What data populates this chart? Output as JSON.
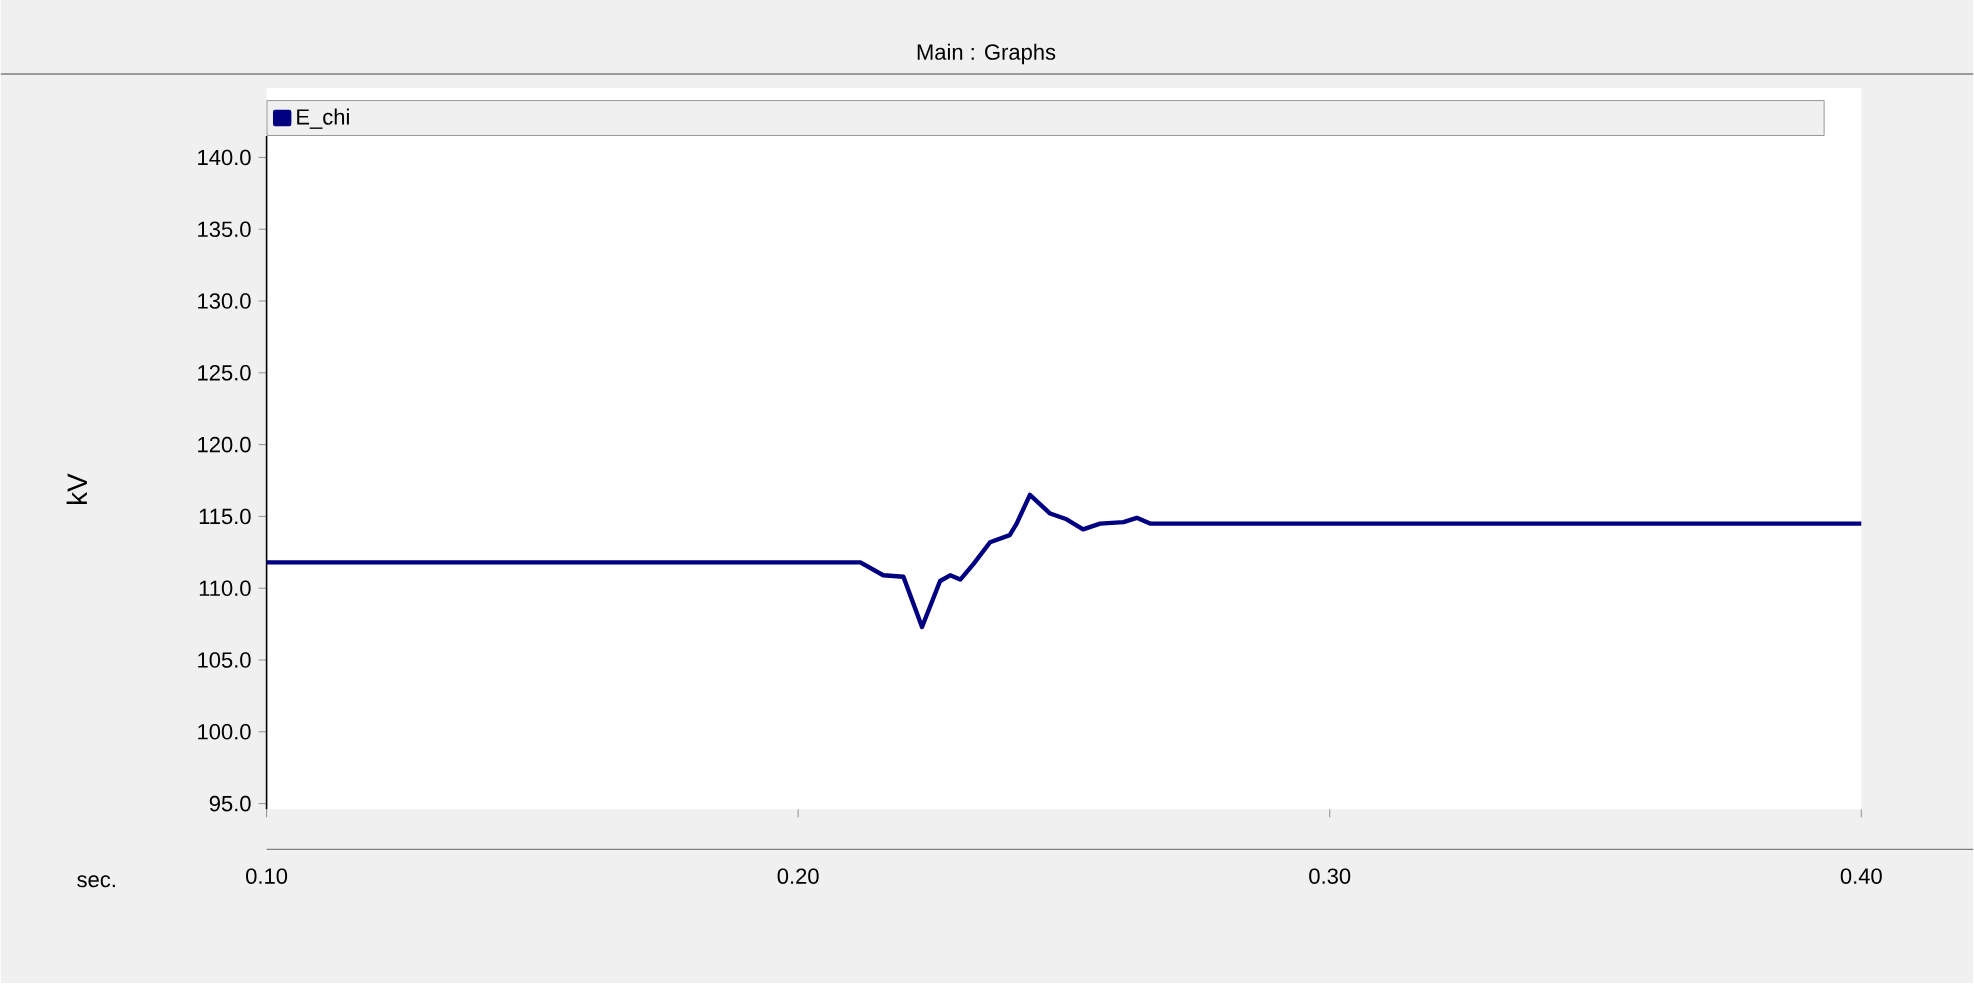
{
  "chart_data": {
    "type": "line",
    "title": "Main : Graphs",
    "xlabel": "sec.",
    "ylabel": "kV",
    "xlim": [
      0.1,
      0.4
    ],
    "ylim": [
      94.6,
      141.5
    ],
    "xticks": [
      {
        "value": 0.1,
        "label": "0.10"
      },
      {
        "value": 0.2,
        "label": "0.20"
      },
      {
        "value": 0.3,
        "label": "0.30"
      },
      {
        "value": 0.4,
        "label": "0.40"
      }
    ],
    "yticks": [
      {
        "value": 95,
        "label": "95.0"
      },
      {
        "value": 100,
        "label": "100.0"
      },
      {
        "value": 105,
        "label": "105.0"
      },
      {
        "value": 110,
        "label": "110.0"
      },
      {
        "value": 115,
        "label": "115.0"
      },
      {
        "value": 120,
        "label": "120.0"
      },
      {
        "value": 125,
        "label": "125.0"
      },
      {
        "value": 130,
        "label": "130.0"
      },
      {
        "value": 135,
        "label": "135.0"
      },
      {
        "value": 140,
        "label": "140.0"
      }
    ],
    "grid": false,
    "legend": "top left",
    "marker": "none",
    "line_style": "solid",
    "series": [
      {
        "name": "E_chi",
        "color": "#000080",
        "x": [
          0.1,
          0.2117,
          0.216,
          0.2198,
          0.2233,
          0.2267,
          0.2286,
          0.2305,
          0.233,
          0.2361,
          0.2398,
          0.2411,
          0.2436,
          0.2474,
          0.2505,
          0.2536,
          0.2568,
          0.2612,
          0.2637,
          0.2662,
          0.4
        ],
        "values": [
          111.8,
          111.8,
          110.9,
          110.8,
          107.3,
          110.5,
          110.9,
          110.6,
          111.7,
          113.2,
          113.7,
          114.5,
          116.5,
          115.2,
          114.8,
          114.1,
          114.5,
          114.6,
          114.9,
          114.5,
          114.5
        ]
      }
    ]
  }
}
